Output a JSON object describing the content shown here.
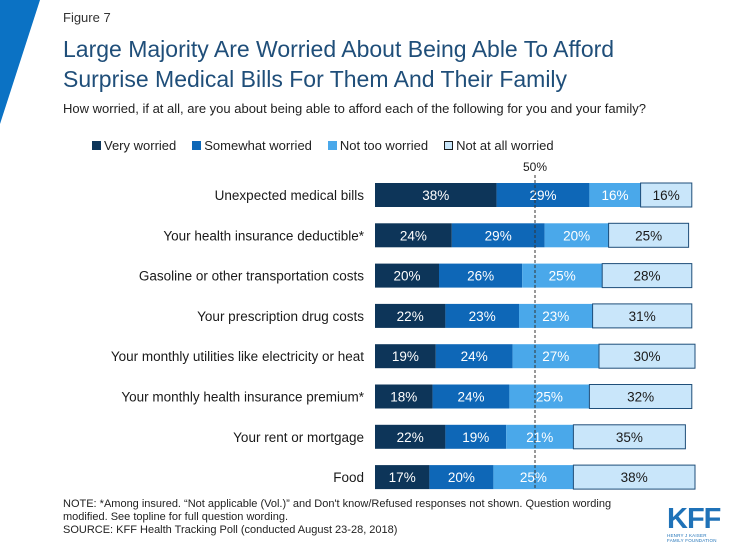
{
  "header": {
    "figure_label": "Figure 7",
    "title": "Large Majority Are Worried About Being Able To Afford\nSurprise Medical Bills For Them And Their Family",
    "subtitle": "How worried, if at all, are you about being able to afford each of the following for you and your family?"
  },
  "footer": {
    "note_line1": "NOTE: *Among insured. “Not applicable (Vol.)” and Don't know/Refused responses not shown. Question wording",
    "note_line2": "modified. See topline for full question wording.",
    "source": "SOURCE: KFF Health Tracking Poll (conducted August 23-28, 2018)"
  },
  "logo": {
    "mark": "KFF",
    "sub_line1": "HENRY J KAISER",
    "sub_line2": "FAMILY FOUNDATION"
  },
  "chart_data": {
    "type": "bar",
    "orientation": "horizontal",
    "stacked": true,
    "xlim": [
      0,
      100
    ],
    "reference_line": {
      "value": 50,
      "label": "50%"
    },
    "legend_position": "top",
    "grid": false,
    "categories": [
      "Unexpected medical bills",
      "Your health insurance deductible*",
      "Gasoline or other transportation costs",
      "Your prescription drug costs",
      "Your monthly utilities like electricity or heat",
      "Your monthly health insurance premium*",
      "Your rent or mortgage",
      "Food"
    ],
    "series": [
      {
        "name": "Very worried",
        "color": "#0d3559",
        "label_color": "#ffffff",
        "values": [
          38,
          24,
          20,
          22,
          19,
          18,
          22,
          17
        ]
      },
      {
        "name": "Somewhat worried",
        "color": "#0e67b7",
        "label_color": "#ffffff",
        "values": [
          29,
          29,
          26,
          23,
          24,
          24,
          19,
          20
        ]
      },
      {
        "name": "Not too worried",
        "color": "#4aa8ea",
        "label_color": "#ffffff",
        "values": [
          16,
          20,
          25,
          23,
          27,
          25,
          21,
          25
        ]
      },
      {
        "name": "Not at all worried",
        "color": "#c9e6fa",
        "label_color": "#1a1a1a",
        "values": [
          16,
          25,
          28,
          31,
          30,
          32,
          35,
          38
        ]
      }
    ]
  }
}
